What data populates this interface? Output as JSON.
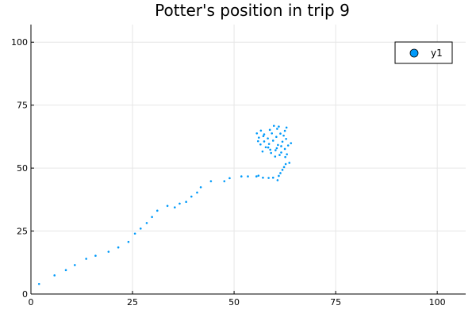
{
  "chart_data": {
    "type": "scatter",
    "title": "Potter's position in trip 9",
    "xlabel": "",
    "ylabel": "",
    "xlim": [
      0,
      107
    ],
    "ylim": [
      0,
      107
    ],
    "xticks": [
      0,
      25,
      50,
      75,
      100
    ],
    "yticks": [
      0,
      25,
      50,
      75,
      100
    ],
    "grid": true,
    "legend_position": "top-right",
    "series": [
      {
        "name": "y1",
        "color": "#009AFA",
        "points": [
          [
            2.0,
            4.0
          ],
          [
            5.8,
            7.4
          ],
          [
            8.6,
            9.5
          ],
          [
            10.8,
            11.5
          ],
          [
            13.6,
            14.0
          ],
          [
            15.9,
            15.2
          ],
          [
            19.1,
            16.8
          ],
          [
            21.5,
            18.5
          ],
          [
            24.0,
            20.7
          ],
          [
            25.6,
            24.0
          ],
          [
            27.0,
            26.0
          ],
          [
            28.5,
            28.2
          ],
          [
            29.8,
            30.6
          ],
          [
            31.1,
            33.1
          ],
          [
            33.6,
            35.0
          ],
          [
            35.4,
            34.4
          ],
          [
            36.6,
            35.9
          ],
          [
            38.2,
            36.6
          ],
          [
            39.5,
            38.7
          ],
          [
            40.9,
            40.3
          ],
          [
            41.8,
            42.4
          ],
          [
            44.3,
            44.8
          ],
          [
            47.6,
            44.8
          ],
          [
            48.9,
            46.0
          ],
          [
            51.8,
            46.7
          ],
          [
            53.4,
            46.7
          ],
          [
            55.5,
            46.7
          ],
          [
            56.0,
            47.0
          ],
          [
            57.1,
            46.2
          ],
          [
            58.5,
            46.1
          ],
          [
            59.6,
            46.2
          ],
          [
            60.7,
            45.2
          ],
          [
            61.0,
            46.9
          ],
          [
            61.4,
            48.0
          ],
          [
            61.9,
            49.3
          ],
          [
            62.3,
            50.4
          ],
          [
            62.7,
            51.6
          ],
          [
            63.6,
            52.1
          ],
          [
            61.2,
            55.2
          ],
          [
            62.6,
            54.4
          ],
          [
            57.0,
            56.6
          ],
          [
            59.1,
            56.0
          ],
          [
            60.2,
            57.1
          ],
          [
            61.6,
            56.2
          ],
          [
            58.4,
            58.2
          ],
          [
            60.5,
            57.9
          ],
          [
            62.5,
            57.6
          ],
          [
            56.5,
            59.4
          ],
          [
            58.6,
            59.6
          ],
          [
            60.8,
            59.2
          ],
          [
            63.3,
            59.0
          ],
          [
            57.4,
            60.6
          ],
          [
            59.6,
            60.9
          ],
          [
            61.9,
            60.5
          ],
          [
            64.0,
            59.9
          ],
          [
            56.1,
            62.1
          ],
          [
            58.3,
            61.8
          ],
          [
            60.4,
            62.4
          ],
          [
            62.8,
            61.6
          ],
          [
            57.4,
            63.4
          ],
          [
            59.3,
            63.8
          ],
          [
            61.4,
            63.7
          ],
          [
            56.6,
            64.9
          ],
          [
            58.8,
            65.2
          ],
          [
            60.6,
            65.6
          ],
          [
            62.5,
            64.8
          ],
          [
            59.8,
            66.8
          ],
          [
            61.0,
            66.5
          ],
          [
            57.8,
            58.3
          ],
          [
            63.0,
            55.5
          ],
          [
            55.9,
            60.7
          ],
          [
            60.1,
            54.6
          ],
          [
            62.2,
            62.9
          ],
          [
            58.9,
            57.3
          ],
          [
            61.6,
            58.7
          ],
          [
            57.2,
            62.7
          ],
          [
            62.9,
            66.1
          ],
          [
            55.6,
            63.8
          ]
        ]
      }
    ]
  }
}
